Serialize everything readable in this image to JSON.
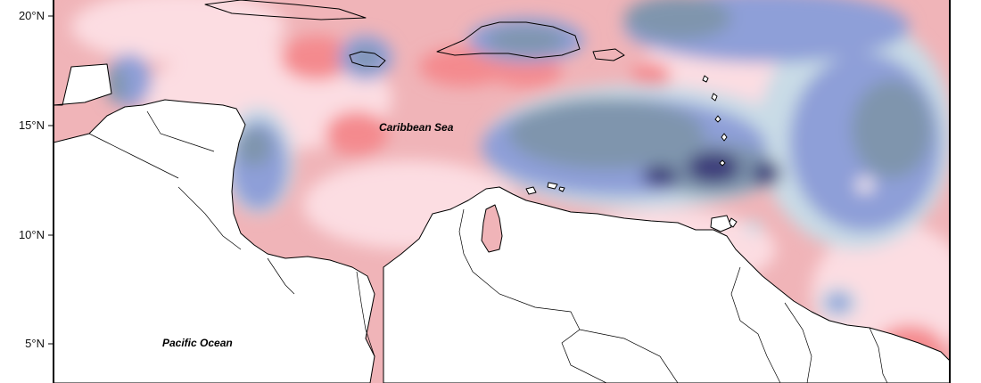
{
  "map": {
    "labels": {
      "caribbean": "Caribbean Sea",
      "pacific": "Pacific Ocean"
    },
    "latitude_ticks": [
      {
        "value": 20,
        "label": "20°N"
      },
      {
        "value": 15,
        "label": "15°N"
      },
      {
        "value": 10,
        "label": "10°N"
      },
      {
        "value": 5,
        "label": "5°N"
      }
    ],
    "colors": {
      "land": "#ffffff",
      "coast": "#000000",
      "strong_negative": "#3c3c7a",
      "negative": "#7f95ad",
      "moderate_negative": "#8e9fd8",
      "weak_negative": "#c9dbe6",
      "neutral": "#fbeff1",
      "weak_positive": "#fcdde2",
      "positive": "#f0b4b8",
      "strong_positive": "#f48a8e"
    }
  }
}
